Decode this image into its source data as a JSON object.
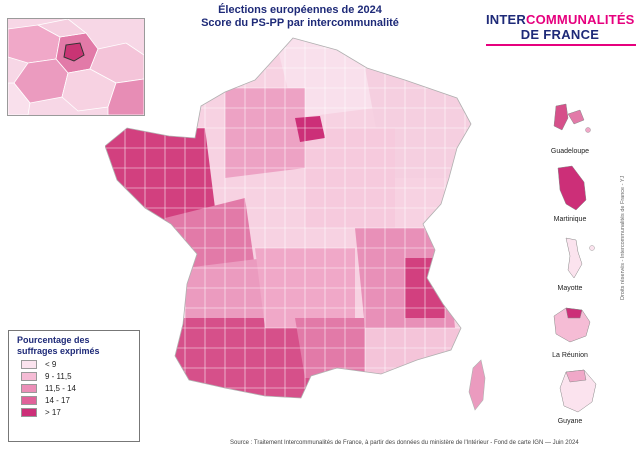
{
  "title": {
    "line1": "Élections européennes de 2024",
    "line2": "Score du PS-PP par intercommunalité"
  },
  "brand": {
    "word1": "INTER",
    "word2": "COMMUNALITÉS",
    "line2": "DE FRANCE"
  },
  "legend": {
    "title_line1": "Pourcentage des",
    "title_line2": "suffrages exprimés",
    "items": [
      {
        "label": "< 9",
        "color": "#fbe3ee"
      },
      {
        "label": "9 - 11,5",
        "color": "#f5bcd5"
      },
      {
        "label": "11,5 - 14",
        "color": "#ec8fb8"
      },
      {
        "label": "14 - 17",
        "color": "#e0629a"
      },
      {
        "label": "> 17",
        "color": "#cc2f78"
      }
    ]
  },
  "overseas": {
    "guadeloupe": "Guadeloupe",
    "martinique": "Martinique",
    "mayotte": "Mayotte",
    "reunion": "La Réunion",
    "guyane": "Guyane"
  },
  "source": "Source : Traitement Intercommunalités de France,  à partir des données du ministère de l'Intérieur - Fond de carte IGN  — Juin 2024",
  "rights": "Droits réservés - Intercommunalités de France - YJ"
}
